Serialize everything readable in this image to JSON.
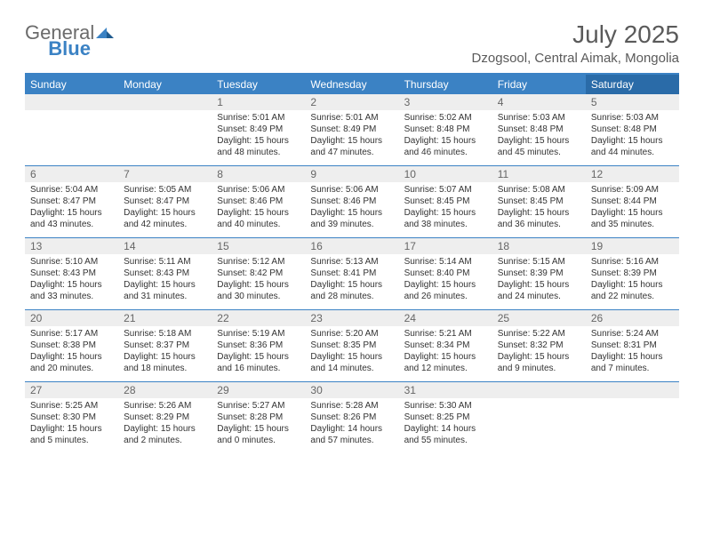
{
  "logo": {
    "text1": "General",
    "text2": "Blue"
  },
  "header": {
    "month_title": "July 2025",
    "location": "Dzogsool, Central Aimak, Mongolia"
  },
  "colors": {
    "header_bg": "#3b82c4",
    "header_sat_bg": "#2a6ba8",
    "daynum_bg": "#eeeeee",
    "divider": "#3b82c4",
    "text": "#333333",
    "title_text": "#5a5a5a"
  },
  "weekdays": [
    "Sunday",
    "Monday",
    "Tuesday",
    "Wednesday",
    "Thursday",
    "Friday",
    "Saturday"
  ],
  "weeks": [
    [
      {
        "n": "",
        "l": []
      },
      {
        "n": "",
        "l": []
      },
      {
        "n": "1",
        "l": [
          "Sunrise: 5:01 AM",
          "Sunset: 8:49 PM",
          "Daylight: 15 hours",
          "and 48 minutes."
        ]
      },
      {
        "n": "2",
        "l": [
          "Sunrise: 5:01 AM",
          "Sunset: 8:49 PM",
          "Daylight: 15 hours",
          "and 47 minutes."
        ]
      },
      {
        "n": "3",
        "l": [
          "Sunrise: 5:02 AM",
          "Sunset: 8:48 PM",
          "Daylight: 15 hours",
          "and 46 minutes."
        ]
      },
      {
        "n": "4",
        "l": [
          "Sunrise: 5:03 AM",
          "Sunset: 8:48 PM",
          "Daylight: 15 hours",
          "and 45 minutes."
        ]
      },
      {
        "n": "5",
        "l": [
          "Sunrise: 5:03 AM",
          "Sunset: 8:48 PM",
          "Daylight: 15 hours",
          "and 44 minutes."
        ]
      }
    ],
    [
      {
        "n": "6",
        "l": [
          "Sunrise: 5:04 AM",
          "Sunset: 8:47 PM",
          "Daylight: 15 hours",
          "and 43 minutes."
        ]
      },
      {
        "n": "7",
        "l": [
          "Sunrise: 5:05 AM",
          "Sunset: 8:47 PM",
          "Daylight: 15 hours",
          "and 42 minutes."
        ]
      },
      {
        "n": "8",
        "l": [
          "Sunrise: 5:06 AM",
          "Sunset: 8:46 PM",
          "Daylight: 15 hours",
          "and 40 minutes."
        ]
      },
      {
        "n": "9",
        "l": [
          "Sunrise: 5:06 AM",
          "Sunset: 8:46 PM",
          "Daylight: 15 hours",
          "and 39 minutes."
        ]
      },
      {
        "n": "10",
        "l": [
          "Sunrise: 5:07 AM",
          "Sunset: 8:45 PM",
          "Daylight: 15 hours",
          "and 38 minutes."
        ]
      },
      {
        "n": "11",
        "l": [
          "Sunrise: 5:08 AM",
          "Sunset: 8:45 PM",
          "Daylight: 15 hours",
          "and 36 minutes."
        ]
      },
      {
        "n": "12",
        "l": [
          "Sunrise: 5:09 AM",
          "Sunset: 8:44 PM",
          "Daylight: 15 hours",
          "and 35 minutes."
        ]
      }
    ],
    [
      {
        "n": "13",
        "l": [
          "Sunrise: 5:10 AM",
          "Sunset: 8:43 PM",
          "Daylight: 15 hours",
          "and 33 minutes."
        ]
      },
      {
        "n": "14",
        "l": [
          "Sunrise: 5:11 AM",
          "Sunset: 8:43 PM",
          "Daylight: 15 hours",
          "and 31 minutes."
        ]
      },
      {
        "n": "15",
        "l": [
          "Sunrise: 5:12 AM",
          "Sunset: 8:42 PM",
          "Daylight: 15 hours",
          "and 30 minutes."
        ]
      },
      {
        "n": "16",
        "l": [
          "Sunrise: 5:13 AM",
          "Sunset: 8:41 PM",
          "Daylight: 15 hours",
          "and 28 minutes."
        ]
      },
      {
        "n": "17",
        "l": [
          "Sunrise: 5:14 AM",
          "Sunset: 8:40 PM",
          "Daylight: 15 hours",
          "and 26 minutes."
        ]
      },
      {
        "n": "18",
        "l": [
          "Sunrise: 5:15 AM",
          "Sunset: 8:39 PM",
          "Daylight: 15 hours",
          "and 24 minutes."
        ]
      },
      {
        "n": "19",
        "l": [
          "Sunrise: 5:16 AM",
          "Sunset: 8:39 PM",
          "Daylight: 15 hours",
          "and 22 minutes."
        ]
      }
    ],
    [
      {
        "n": "20",
        "l": [
          "Sunrise: 5:17 AM",
          "Sunset: 8:38 PM",
          "Daylight: 15 hours",
          "and 20 minutes."
        ]
      },
      {
        "n": "21",
        "l": [
          "Sunrise: 5:18 AM",
          "Sunset: 8:37 PM",
          "Daylight: 15 hours",
          "and 18 minutes."
        ]
      },
      {
        "n": "22",
        "l": [
          "Sunrise: 5:19 AM",
          "Sunset: 8:36 PM",
          "Daylight: 15 hours",
          "and 16 minutes."
        ]
      },
      {
        "n": "23",
        "l": [
          "Sunrise: 5:20 AM",
          "Sunset: 8:35 PM",
          "Daylight: 15 hours",
          "and 14 minutes."
        ]
      },
      {
        "n": "24",
        "l": [
          "Sunrise: 5:21 AM",
          "Sunset: 8:34 PM",
          "Daylight: 15 hours",
          "and 12 minutes."
        ]
      },
      {
        "n": "25",
        "l": [
          "Sunrise: 5:22 AM",
          "Sunset: 8:32 PM",
          "Daylight: 15 hours",
          "and 9 minutes."
        ]
      },
      {
        "n": "26",
        "l": [
          "Sunrise: 5:24 AM",
          "Sunset: 8:31 PM",
          "Daylight: 15 hours",
          "and 7 minutes."
        ]
      }
    ],
    [
      {
        "n": "27",
        "l": [
          "Sunrise: 5:25 AM",
          "Sunset: 8:30 PM",
          "Daylight: 15 hours",
          "and 5 minutes."
        ]
      },
      {
        "n": "28",
        "l": [
          "Sunrise: 5:26 AM",
          "Sunset: 8:29 PM",
          "Daylight: 15 hours",
          "and 2 minutes."
        ]
      },
      {
        "n": "29",
        "l": [
          "Sunrise: 5:27 AM",
          "Sunset: 8:28 PM",
          "Daylight: 15 hours",
          "and 0 minutes."
        ]
      },
      {
        "n": "30",
        "l": [
          "Sunrise: 5:28 AM",
          "Sunset: 8:26 PM",
          "Daylight: 14 hours",
          "and 57 minutes."
        ]
      },
      {
        "n": "31",
        "l": [
          "Sunrise: 5:30 AM",
          "Sunset: 8:25 PM",
          "Daylight: 14 hours",
          "and 55 minutes."
        ]
      },
      {
        "n": "",
        "l": []
      },
      {
        "n": "",
        "l": []
      }
    ]
  ]
}
